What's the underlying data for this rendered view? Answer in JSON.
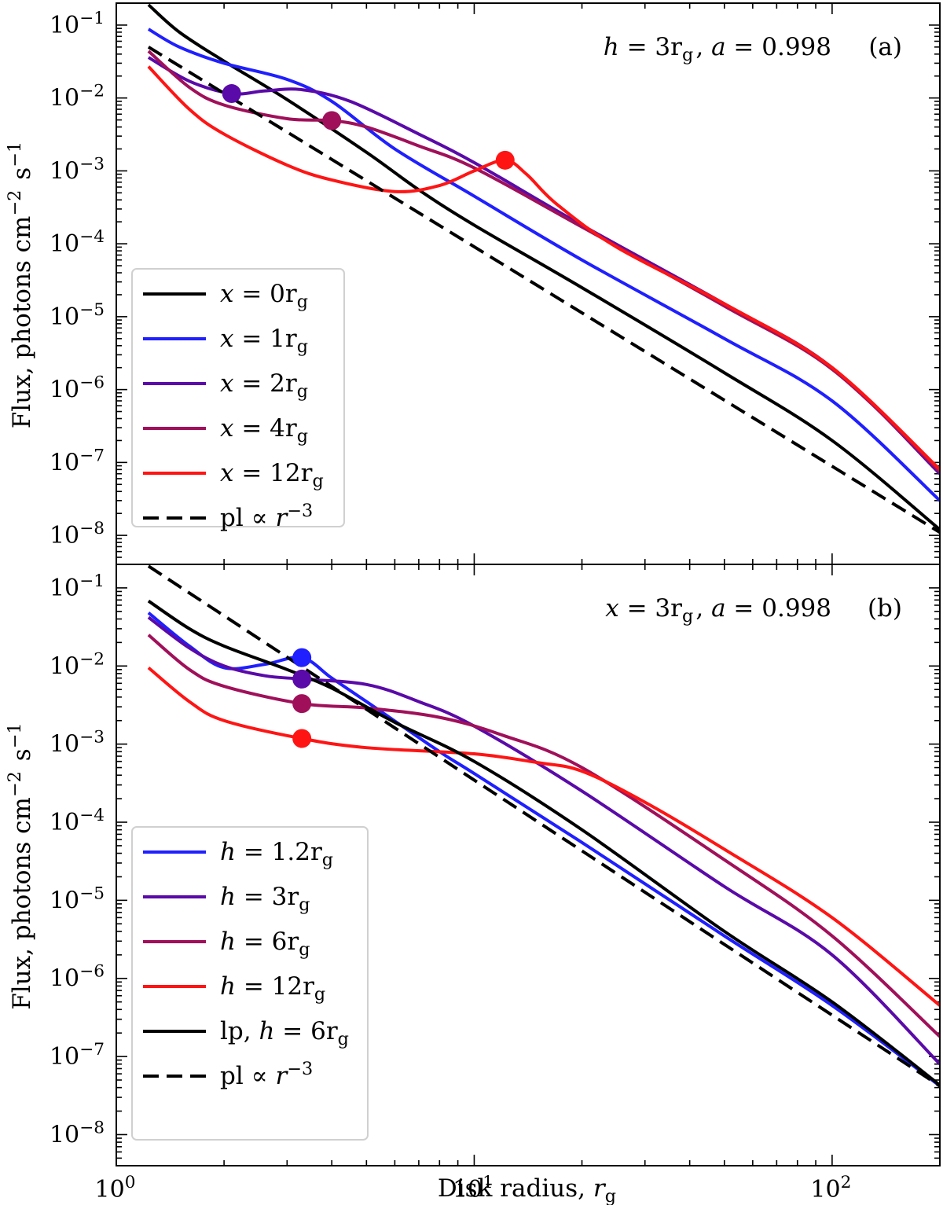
{
  "chart_data": [
    {
      "type": "line",
      "panel": "(a)",
      "annotation": "h = 3r_g, a = 0.998",
      "xlabel": "",
      "ylabel": "Flux, photons cm^-2 s^-1",
      "xscale": "log",
      "yscale": "log",
      "xlim": [
        1.0,
        200
      ],
      "ylim": [
        4e-09,
        0.2
      ],
      "x_ticks": [
        {
          "value": 1,
          "label": "10^0"
        },
        {
          "value": 10,
          "label": "10^1"
        },
        {
          "value": 100,
          "label": "10^2"
        }
      ],
      "y_ticks": [
        {
          "value": 1e-08,
          "label": "10^-8"
        },
        {
          "value": 1e-07,
          "label": "10^-7"
        },
        {
          "value": 1e-06,
          "label": "10^-6"
        },
        {
          "value": 1e-05,
          "label": "10^-5"
        },
        {
          "value": 0.0001,
          "label": "10^-4"
        },
        {
          "value": 0.001,
          "label": "10^-3"
        },
        {
          "value": 0.01,
          "label": "10^-2"
        },
        {
          "value": 0.1,
          "label": "10^-1"
        }
      ],
      "legend_position": "lower-left",
      "series": [
        {
          "name": "x = 0r_g",
          "color": "#000000",
          "dash": false,
          "points": [
            [
              1.23,
              0.19
            ],
            [
              1.5,
              0.08
            ],
            [
              2.0,
              0.032
            ],
            [
              3.0,
              0.0095
            ],
            [
              5.0,
              0.0018
            ],
            [
              7.0,
              0.00055
            ],
            [
              10,
              0.00018
            ],
            [
              20,
              2.5e-05
            ],
            [
              50,
              1.7e-06
            ],
            [
              100,
              2e-07
            ],
            [
              200,
              1.2e-08
            ]
          ]
        },
        {
          "name": "x = 1r_g",
          "color": "#1f1fff",
          "dash": false,
          "points": [
            [
              1.23,
              0.088
            ],
            [
              1.5,
              0.05
            ],
            [
              2.0,
              0.03
            ],
            [
              3.0,
              0.018
            ],
            [
              4.0,
              0.009
            ],
            [
              6.0,
              0.002
            ],
            [
              10,
              0.00045
            ],
            [
              20,
              6e-05
            ],
            [
              50,
              5e-06
            ],
            [
              100,
              7e-07
            ],
            [
              200,
              3e-08
            ]
          ]
        },
        {
          "name": "x = 2r_g",
          "color": "#5a0aa8",
          "dash": false,
          "points": [
            [
              1.23,
              0.036
            ],
            [
              1.6,
              0.017
            ],
            [
              2.1,
              0.0115
            ],
            [
              2.6,
              0.0125
            ],
            [
              3.3,
              0.013
            ],
            [
              4.5,
              0.009
            ],
            [
              7.0,
              0.0032
            ],
            [
              10,
              0.0013
            ],
            [
              20,
              0.00018
            ],
            [
              50,
              1.5e-05
            ],
            [
              100,
              2e-06
            ],
            [
              200,
              7e-08
            ]
          ]
        },
        {
          "name": "x = 4r_g",
          "color": "#a0105a",
          "dash": false,
          "points": [
            [
              1.23,
              0.044
            ],
            [
              1.6,
              0.014
            ],
            [
              2.0,
              0.008
            ],
            [
              3.0,
              0.0052
            ],
            [
              4.0,
              0.0049
            ],
            [
              5.0,
              0.004
            ],
            [
              7.0,
              0.0022
            ],
            [
              10,
              0.0011
            ],
            [
              20,
              0.00017
            ],
            [
              50,
              1.4e-05
            ],
            [
              100,
              1.9e-06
            ],
            [
              200,
              7.5e-08
            ]
          ]
        },
        {
          "name": "x = 12r_g",
          "color": "#ff1414",
          "dash": false,
          "points": [
            [
              1.23,
              0.027
            ],
            [
              1.6,
              0.007
            ],
            [
              2.0,
              0.0032
            ],
            [
              3.0,
              0.0012
            ],
            [
              4.0,
              0.00075
            ],
            [
              6.0,
              0.00052
            ],
            [
              8.0,
              0.00063
            ],
            [
              10,
              0.001
            ],
            [
              12.2,
              0.0014
            ],
            [
              14,
              0.0009
            ],
            [
              17,
              0.00035
            ],
            [
              25,
              9e-05
            ],
            [
              50,
              1.5e-05
            ],
            [
              100,
              2e-06
            ],
            [
              200,
              8e-08
            ]
          ]
        },
        {
          "name": "pl ∝ r^-3",
          "color": "#000000",
          "dash": true,
          "points": [
            [
              1.23,
              0.05
            ],
            [
              200,
              1.1e-08
            ]
          ]
        }
      ],
      "markers": [
        {
          "x": 2.1,
          "y": 0.0115,
          "color": "#5a0aa8"
        },
        {
          "x": 4.0,
          "y": 0.0049,
          "color": "#a0105a"
        },
        {
          "x": 12.2,
          "y": 0.0014,
          "color": "#ff1414"
        }
      ]
    },
    {
      "type": "line",
      "panel": "(b)",
      "annotation": "x = 3r_g, a = 0.998",
      "xlabel": "Disk radius, r_g",
      "ylabel": "Flux, photons cm^-2 s^-1",
      "xscale": "log",
      "yscale": "log",
      "xlim": [
        1.0,
        200
      ],
      "ylim": [
        4e-09,
        0.2
      ],
      "x_ticks": [
        {
          "value": 1,
          "label": "10^0"
        },
        {
          "value": 10,
          "label": "10^1"
        },
        {
          "value": 100,
          "label": "10^2"
        }
      ],
      "y_ticks": [
        {
          "value": 1e-08,
          "label": "10^-8"
        },
        {
          "value": 1e-07,
          "label": "10^-7"
        },
        {
          "value": 1e-06,
          "label": "10^-6"
        },
        {
          "value": 1e-05,
          "label": "10^-5"
        },
        {
          "value": 0.0001,
          "label": "10^-4"
        },
        {
          "value": 0.001,
          "label": "10^-3"
        },
        {
          "value": 0.01,
          "label": "10^-2"
        },
        {
          "value": 0.1,
          "label": "10^-1"
        }
      ],
      "legend_position": "lower-left",
      "series": [
        {
          "name": "h = 1.2r_g",
          "color": "#1f1fff",
          "dash": false,
          "points": [
            [
              1.23,
              0.048
            ],
            [
              1.6,
              0.018
            ],
            [
              2.0,
              0.0095
            ],
            [
              2.6,
              0.0105
            ],
            [
              3.3,
              0.0128
            ],
            [
              4.0,
              0.007
            ],
            [
              5.0,
              0.0035
            ],
            [
              8.0,
              0.0008
            ],
            [
              10,
              0.00042
            ],
            [
              20,
              5.5e-05
            ],
            [
              50,
              3.5e-06
            ],
            [
              100,
              4.5e-07
            ],
            [
              200,
              4.2e-08
            ]
          ]
        },
        {
          "name": "h = 3r_g",
          "color": "#5a0aa8",
          "dash": false,
          "points": [
            [
              1.23,
              0.042
            ],
            [
              1.6,
              0.017
            ],
            [
              2.0,
              0.01
            ],
            [
              2.6,
              0.0075
            ],
            [
              3.3,
              0.0068
            ],
            [
              5.0,
              0.0058
            ],
            [
              7.0,
              0.0035
            ],
            [
              10,
              0.0017
            ],
            [
              20,
              0.00025
            ],
            [
              50,
              1.5e-05
            ],
            [
              100,
              2e-06
            ],
            [
              200,
              8e-08
            ]
          ]
        },
        {
          "name": "h = 6r_g",
          "color": "#a0105a",
          "dash": false,
          "points": [
            [
              1.23,
              0.025
            ],
            [
              1.6,
              0.009
            ],
            [
              2.0,
              0.0055
            ],
            [
              3.3,
              0.0033
            ],
            [
              5.0,
              0.0029
            ],
            [
              8.0,
              0.0022
            ],
            [
              12,
              0.0013
            ],
            [
              20,
              0.0005
            ],
            [
              50,
              3.3e-05
            ],
            [
              100,
              3.5e-06
            ],
            [
              200,
              1.8e-07
            ]
          ]
        },
        {
          "name": "h = 12r_g",
          "color": "#ff1414",
          "dash": false,
          "points": [
            [
              1.23,
              0.0095
            ],
            [
              1.6,
              0.0035
            ],
            [
              2.0,
              0.002
            ],
            [
              3.3,
              0.00118
            ],
            [
              5.0,
              0.0009
            ],
            [
              10,
              0.00075
            ],
            [
              15,
              0.00058
            ],
            [
              20,
              0.00045
            ],
            [
              30,
              0.00018
            ],
            [
              50,
              4.5e-05
            ],
            [
              100,
              6e-06
            ],
            [
              200,
              4.5e-07
            ]
          ]
        },
        {
          "name": "lp, h = 6r_g",
          "color": "#000000",
          "dash": false,
          "points": [
            [
              1.23,
              0.068
            ],
            [
              1.6,
              0.03
            ],
            [
              2.0,
              0.018
            ],
            [
              3.0,
              0.009
            ],
            [
              4.0,
              0.0052
            ],
            [
              6.0,
              0.0019
            ],
            [
              10,
              0.0006
            ],
            [
              20,
              8e-05
            ],
            [
              50,
              4e-06
            ],
            [
              100,
              5e-07
            ],
            [
              200,
              4.3e-08
            ]
          ]
        },
        {
          "name": "pl ∝ r^-3",
          "color": "#000000",
          "dash": true,
          "points": [
            [
              1.23,
              0.19
            ],
            [
              200,
              4.2e-08
            ]
          ]
        }
      ],
      "markers": [
        {
          "x": 3.3,
          "y": 0.0128,
          "color": "#1f1fff"
        },
        {
          "x": 3.3,
          "y": 0.0068,
          "color": "#5a0aa8"
        },
        {
          "x": 3.3,
          "y": 0.0033,
          "color": "#a0105a"
        },
        {
          "x": 3.3,
          "y": 0.00118,
          "color": "#ff1414"
        }
      ]
    }
  ]
}
